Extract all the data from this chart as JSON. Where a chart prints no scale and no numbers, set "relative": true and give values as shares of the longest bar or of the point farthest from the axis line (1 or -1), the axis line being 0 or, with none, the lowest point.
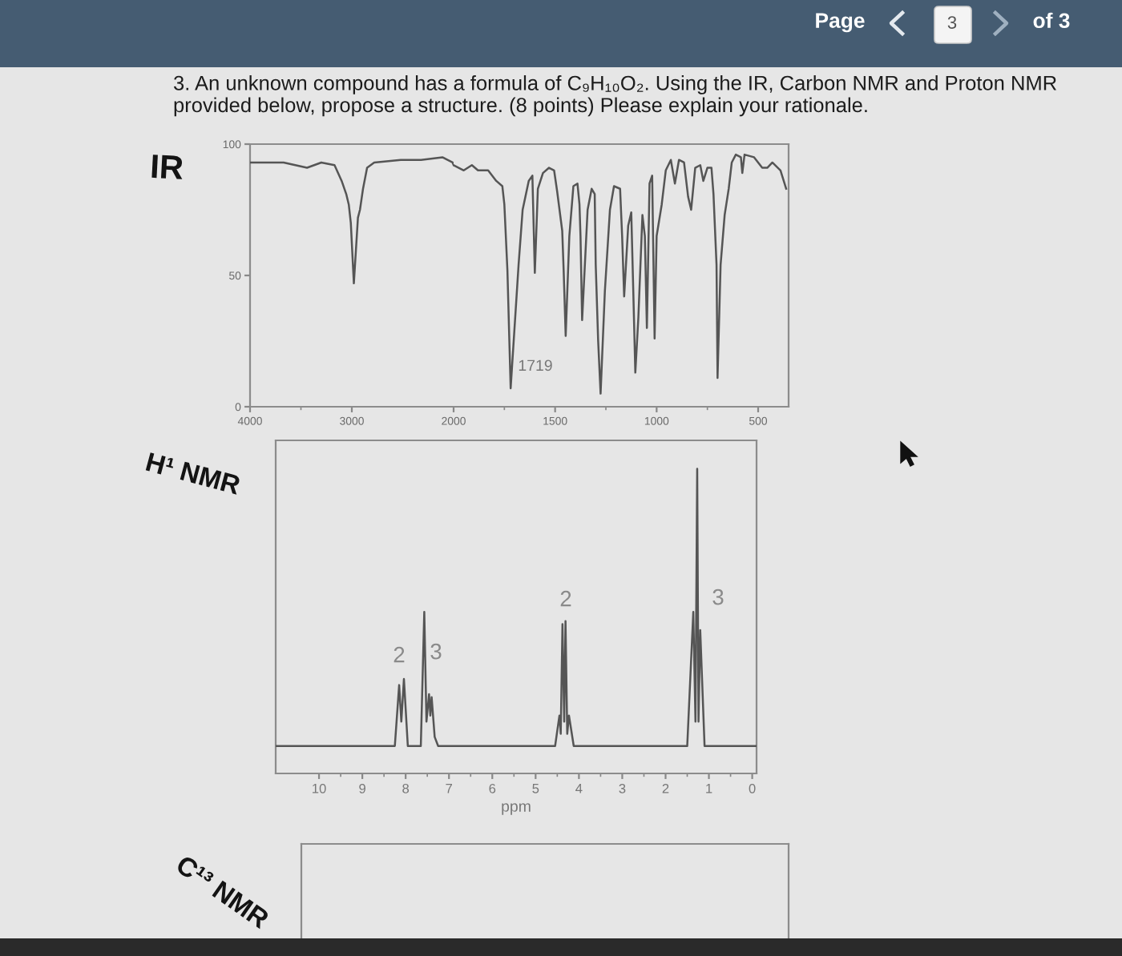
{
  "chart_data": [
    {
      "type": "other",
      "title": "3. An unknown compound has a formula of C₉H₁₀O₂. Using the IR, Carbon NMR and Proton NMR provided below, propose a structure. (8 points) Please explain your rationale.",
      "annotations": [
        "Page",
        "3",
        "of 3"
      ]
    },
    {
      "type": "line",
      "title": "IR",
      "color": "#555555",
      "x": [
        4000,
        3670,
        3440,
        3300,
        3170,
        3100,
        3055,
        3030,
        3010,
        2980,
        2940,
        2920,
        2890,
        2850,
        2780,
        2520,
        2320,
        2110,
        2010,
        2000
      ],
      "values": [
        93,
        93,
        91,
        93,
        92,
        86,
        81,
        77,
        70,
        47,
        72,
        75,
        83,
        91,
        93,
        94,
        94,
        95,
        93,
        92
      ],
      "xlim": [
        4000,
        2000
      ],
      "xticks": [
        4000,
        3000
      ],
      "ylim": [
        0,
        100
      ],
      "yticks": [
        0,
        50,
        100
      ]
    },
    {
      "type": "line",
      "color": "#555555",
      "tick_labels": "x",
      "x": [
        2000,
        1950,
        1910,
        1880,
        1830,
        1790,
        1760,
        1750,
        1735,
        1719,
        1680,
        1660,
        1630,
        1612,
        1600,
        1585,
        1560,
        1530,
        1505,
        1490,
        1465,
        1458,
        1448,
        1430,
        1410,
        1390,
        1380,
        1375,
        1367,
        1340,
        1320,
        1305,
        1300,
        1288,
        1276,
        1255,
        1230,
        1210,
        1180,
        1170,
        1160,
        1140,
        1125,
        1115,
        1105,
        1090,
        1070,
        1058,
        1048,
        1035,
        1022,
        1010,
        1000,
        975,
        955,
        930,
        910,
        890,
        865,
        845,
        830,
        810,
        785,
        770,
        750,
        730,
        720,
        705,
        700,
        685,
        665,
        645,
        630,
        610,
        585,
        578,
        567,
        520,
        480,
        455,
        430,
        390,
        362
      ],
      "values": [
        92,
        90,
        92,
        90,
        90,
        86,
        84,
        77,
        52,
        7,
        54,
        75,
        86,
        88,
        51,
        83,
        89,
        91,
        90,
        82,
        67,
        52,
        27,
        65,
        84,
        85,
        77,
        65,
        33,
        75,
        83,
        81,
        54,
        25,
        5,
        44,
        75,
        84,
        83,
        65,
        42,
        69,
        74,
        44,
        13,
        34,
        73,
        65,
        30,
        85,
        88,
        26,
        65,
        77,
        90,
        94,
        85,
        94,
        93,
        80,
        75,
        91,
        92,
        86,
        91,
        91,
        81,
        54,
        11,
        54,
        73,
        83,
        93,
        96,
        95,
        89,
        96,
        95,
        91,
        91,
        93,
        90,
        83
      ],
      "xlim": [
        2000,
        350
      ],
      "xticks": [
        2000,
        1500,
        1000,
        500
      ],
      "ylim": [
        0,
        100
      ],
      "annotations": [
        "1719"
      ]
    },
    {
      "type": "line",
      "title": "H¹ NMR",
      "xlabel": "ppm",
      "color": "#555555",
      "relative": true,
      "x": [
        11,
        8.25,
        8.15,
        8.1,
        8.04,
        7.95,
        7.65,
        7.57,
        7.52,
        7.46,
        7.43,
        7.4,
        7.33,
        7.25,
        4.55,
        4.45,
        4.42,
        4.38,
        4.34,
        4.31,
        4.27,
        4.23,
        4.12,
        1.5,
        1.36,
        1.31,
        1.27,
        1.24,
        1.2,
        1.1,
        -0.1
      ],
      "values": [
        0.09,
        0.09,
        0.29,
        0.17,
        0.31,
        0.09,
        0.09,
        0.53,
        0.17,
        0.26,
        0.19,
        0.25,
        0.12,
        0.09,
        0.09,
        0.19,
        0.13,
        0.49,
        0.17,
        0.5,
        0.13,
        0.19,
        0.09,
        0.09,
        0.53,
        0.17,
        1,
        0.17,
        0.47,
        0.09,
        0.09
      ],
      "xlim": [
        11,
        -0.1
      ],
      "xticks": [
        10,
        9,
        8,
        7,
        6,
        5,
        4,
        3,
        2,
        1,
        0
      ],
      "annotations": [
        "2",
        "3",
        "2",
        "3"
      ]
    },
    {
      "type": "other",
      "title": "C¹³ NMR"
    }
  ]
}
